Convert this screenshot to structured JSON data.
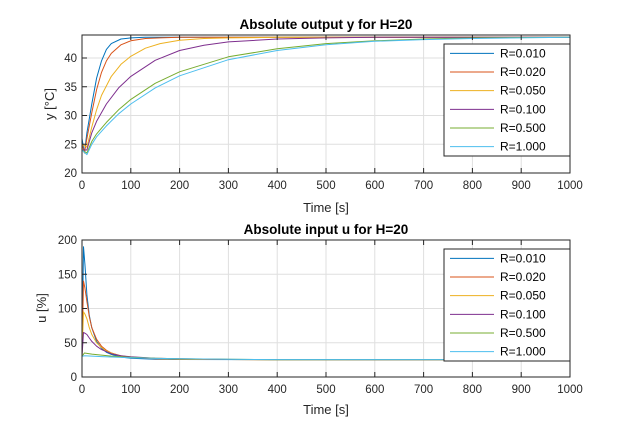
{
  "chart_data": [
    {
      "type": "line",
      "title": "Absolute output y for H=20",
      "xlabel": "Time [s]",
      "ylabel": "y [°C]",
      "xlim": [
        0,
        1000
      ],
      "ylim": [
        20,
        44
      ],
      "xticks": [
        0,
        100,
        200,
        300,
        400,
        500,
        600,
        700,
        800,
        900,
        1000
      ],
      "yticks": [
        20,
        25,
        30,
        35,
        40
      ],
      "grid": true,
      "legend_position": "top-right",
      "series": [
        {
          "name": "R=0.010",
          "color": "#0072BD",
          "x": [
            0,
            5,
            10,
            20,
            30,
            40,
            50,
            60,
            80,
            100,
            130,
            160,
            200,
            300,
            1000
          ],
          "y": [
            26,
            23.5,
            27,
            32,
            36.5,
            39.5,
            41.5,
            42.5,
            43.3,
            43.5,
            43.6,
            43.6,
            43.6,
            43.6,
            43.6
          ]
        },
        {
          "name": "R=0.020",
          "color": "#D95319",
          "x": [
            0,
            5,
            10,
            20,
            30,
            40,
            50,
            60,
            80,
            100,
            130,
            160,
            200,
            300,
            1000
          ],
          "y": [
            25,
            23.5,
            26,
            30.5,
            34.5,
            37.5,
            39.5,
            40.8,
            42.3,
            43.0,
            43.4,
            43.5,
            43.6,
            43.6,
            43.6
          ]
        },
        {
          "name": "R=0.050",
          "color": "#EDB120",
          "x": [
            0,
            10,
            20,
            30,
            40,
            60,
            80,
            100,
            130,
            160,
            200,
            250,
            300,
            400,
            1000
          ],
          "y": [
            25,
            24.5,
            28,
            31,
            33.5,
            36.8,
            38.9,
            40.3,
            41.7,
            42.5,
            43.1,
            43.4,
            43.5,
            43.6,
            43.6
          ]
        },
        {
          "name": "R=0.100",
          "color": "#7E2F8E",
          "x": [
            0,
            10,
            20,
            30,
            50,
            75,
            100,
            150,
            200,
            250,
            300,
            400,
            500,
            600,
            1000
          ],
          "y": [
            24,
            24,
            27,
            29,
            32,
            34.8,
            36.8,
            39.6,
            41.3,
            42.2,
            42.8,
            43.3,
            43.5,
            43.6,
            43.6
          ]
        },
        {
          "name": "R=0.500",
          "color": "#77AC30",
          "x": [
            0,
            10,
            20,
            30,
            50,
            75,
            100,
            150,
            200,
            300,
            400,
            500,
            600,
            700,
            800,
            1000
          ],
          "y": [
            24,
            23.5,
            25.5,
            26.8,
            28.8,
            31,
            32.8,
            35.6,
            37.6,
            40.2,
            41.6,
            42.5,
            43.0,
            43.3,
            43.5,
            43.6
          ]
        },
        {
          "name": "R=1.000",
          "color": "#4DBEEE",
          "x": [
            0,
            10,
            20,
            30,
            50,
            75,
            100,
            150,
            200,
            300,
            400,
            500,
            600,
            700,
            800,
            1000
          ],
          "y": [
            24,
            23.2,
            25,
            26.3,
            28.2,
            30.3,
            32,
            34.8,
            36.9,
            39.7,
            41.3,
            42.3,
            42.9,
            43.2,
            43.4,
            43.6
          ]
        }
      ]
    },
    {
      "type": "line",
      "title": "Absolute input u for H=20",
      "xlabel": "Time [s]",
      "ylabel": "u [%]",
      "xlim": [
        0,
        1000
      ],
      "ylim": [
        0,
        200
      ],
      "xticks": [
        0,
        100,
        200,
        300,
        400,
        500,
        600,
        700,
        800,
        900,
        1000
      ],
      "yticks": [
        0,
        50,
        100,
        150,
        200
      ],
      "grid": true,
      "legend_position": "top-right",
      "series": [
        {
          "name": "R=0.010",
          "color": "#0072BD",
          "x": [
            0,
            3,
            6,
            10,
            15,
            20,
            30,
            40,
            50,
            60,
            80,
            100,
            150,
            200,
            400,
            1000
          ],
          "y": [
            30,
            190,
            165,
            120,
            90,
            72,
            52,
            42,
            36,
            33,
            29,
            27.5,
            26,
            25.5,
            25.2,
            25.2
          ]
        },
        {
          "name": "R=0.020",
          "color": "#D95319",
          "x": [
            0,
            3,
            6,
            10,
            15,
            20,
            30,
            40,
            50,
            60,
            80,
            100,
            150,
            200,
            400,
            1000
          ],
          "y": [
            30,
            140,
            130,
            110,
            88,
            72,
            55,
            45,
            39,
            35,
            30.5,
            28.5,
            26.5,
            25.8,
            25.2,
            25.2
          ]
        },
        {
          "name": "R=0.050",
          "color": "#EDB120",
          "x": [
            0,
            3,
            6,
            10,
            15,
            20,
            30,
            40,
            50,
            60,
            80,
            100,
            150,
            200,
            400,
            1000
          ],
          "y": [
            30,
            95,
            92,
            85,
            72,
            62,
            50,
            43,
            38,
            35,
            31,
            29,
            27,
            26,
            25.2,
            25.2
          ]
        },
        {
          "name": "R=0.100",
          "color": "#7E2F8E",
          "x": [
            0,
            3,
            6,
            10,
            15,
            20,
            30,
            40,
            60,
            80,
            100,
            150,
            200,
            300,
            1000
          ],
          "y": [
            30,
            65,
            64,
            62,
            57,
            52,
            45,
            40,
            34,
            31,
            29.5,
            27.5,
            26.5,
            25.6,
            25.2
          ]
        },
        {
          "name": "R=0.500",
          "color": "#77AC30",
          "x": [
            0,
            5,
            10,
            20,
            40,
            60,
            100,
            150,
            200,
            300,
            400,
            1000
          ],
          "y": [
            30,
            35,
            34.5,
            33.5,
            32,
            30.5,
            28.8,
            27.5,
            26.6,
            25.8,
            25.4,
            25.2
          ]
        },
        {
          "name": "R=1.000",
          "color": "#4DBEEE",
          "x": [
            0,
            5,
            10,
            20,
            40,
            60,
            100,
            150,
            200,
            300,
            400,
            1000
          ],
          "y": [
            30,
            31,
            30.8,
            30.5,
            29.8,
            29.2,
            28.2,
            27.2,
            26.5,
            25.8,
            25.4,
            25.2
          ]
        }
      ]
    }
  ]
}
